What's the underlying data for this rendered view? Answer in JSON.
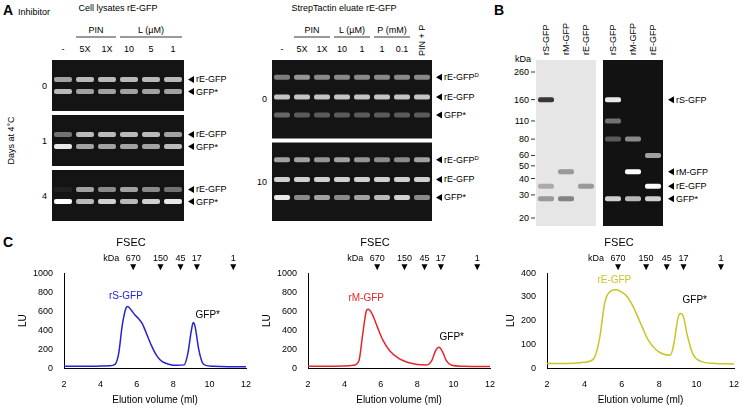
{
  "figure": {
    "panel_a": {
      "letter": "A",
      "inhibitor_label": "Inhibitor",
      "gels": [
        {
          "title": "Cell lysates rE-GFP",
          "row_axis_label": "Days at 4°C",
          "lanes": [
            {
              "label": "-"
            },
            {
              "label": "5X",
              "group": "PIN"
            },
            {
              "label": "1X",
              "group": "PIN"
            },
            {
              "label": "10",
              "group": "L (µM)"
            },
            {
              "label": "5",
              "group": "L (µM)"
            },
            {
              "label": "1",
              "group": "L (µM)"
            }
          ],
          "band_labels": [
            {
              "text": "rE-GFP"
            },
            {
              "text": "GFP*"
            }
          ],
          "rows": [
            {
              "label": "0",
              "bands": [
                [
                  0.6,
                  0.7
                ],
                [
                  0.7,
                  0.6
                ],
                [
                  0.7,
                  0.6
                ],
                [
                  0.7,
                  0.6
                ],
                [
                  0.7,
                  0.6
                ],
                [
                  0.7,
                  0.6
                ]
              ]
            },
            {
              "label": "1",
              "bands": [
                [
                  0.4,
                  0.9
                ],
                [
                  0.7,
                  0.6
                ],
                [
                  0.7,
                  0.6
                ],
                [
                  0.7,
                  0.6
                ],
                [
                  0.7,
                  0.6
                ],
                [
                  0.6,
                  0.7
                ]
              ]
            },
            {
              "label": "4",
              "bands": [
                [
                  0.05,
                  1.0
                ],
                [
                  0.6,
                  0.7
                ],
                [
                  0.5,
                  0.8
                ],
                [
                  0.6,
                  0.7
                ],
                [
                  0.5,
                  0.8
                ],
                [
                  0.4,
                  0.9
                ]
              ]
            }
          ]
        },
        {
          "title": "StrepTactin eluate rE-GFP",
          "lanes": [
            {
              "label": "-"
            },
            {
              "label": "5X",
              "group": "PIN"
            },
            {
              "label": "1X",
              "group": "PIN"
            },
            {
              "label": "10",
              "group": "L (µM)"
            },
            {
              "label": "1",
              "group": "L (µM)"
            },
            {
              "label": "1",
              "group": "P (mM)"
            },
            {
              "label": "0.1",
              "group": "P (mM)"
            },
            {
              "label": "PIN + P"
            }
          ],
          "band_labels": [
            {
              "text": "rE-GFP",
              "sup": "D"
            },
            {
              "text": "rE-GFP"
            },
            {
              "text": "GFP*"
            }
          ],
          "rows": [
            {
              "label": "0",
              "bands": [
                [
                  0.45,
                  0.75,
                  0.35
                ],
                [
                  0.55,
                  0.75,
                  0.3
                ],
                [
                  0.5,
                  0.75,
                  0.3
                ],
                [
                  0.5,
                  0.75,
                  0.3
                ],
                [
                  0.5,
                  0.75,
                  0.3
                ],
                [
                  0.5,
                  0.75,
                  0.3
                ],
                [
                  0.5,
                  0.75,
                  0.3
                ],
                [
                  0.5,
                  0.75,
                  0.3
                ]
              ]
            },
            {
              "label": "10",
              "bands": [
                [
                  0.6,
                  0.8,
                  0.9
                ],
                [
                  0.6,
                  0.8,
                  0.5
                ],
                [
                  0.55,
                  0.8,
                  0.6
                ],
                [
                  0.6,
                  0.8,
                  0.5
                ],
                [
                  0.55,
                  0.8,
                  0.6
                ],
                [
                  0.5,
                  0.8,
                  0.7
                ],
                [
                  0.5,
                  0.8,
                  0.8
                ],
                [
                  0.6,
                  0.8,
                  0.5
                ]
              ]
            }
          ]
        }
      ]
    },
    "panel_b": {
      "letter": "B",
      "unit": "kDa",
      "ladder": [
        260,
        160,
        110,
        80,
        60,
        50,
        40,
        30,
        20
      ],
      "gels": [
        {
          "style": "stain",
          "lanes": [
            {
              "label": "rS-GFP",
              "bands": [
                {
                  "kDa": 160,
                  "intensity": 0.9
                },
                {
                  "kDa": 35,
                  "intensity": 0.3
                },
                {
                  "kDa": 28,
                  "intensity": 0.4
                }
              ]
            },
            {
              "label": "rM-GFP",
              "bands": [
                {
                  "kDa": 45,
                  "intensity": 0.4
                },
                {
                  "kDa": 28,
                  "intensity": 0.5
                }
              ]
            },
            {
              "label": "rE-GFP",
              "bands": [
                {
                  "kDa": 35,
                  "intensity": 0.4
                }
              ]
            }
          ]
        },
        {
          "style": "fluorescence",
          "lanes": [
            {
              "label": "rS-GFP",
              "bands": [
                {
                  "kDa": 160,
                  "intensity": 0.9
                },
                {
                  "kDa": 110,
                  "intensity": 0.4
                },
                {
                  "kDa": 80,
                  "intensity": 0.3
                },
                {
                  "kDa": 28,
                  "intensity": 0.8
                }
              ]
            },
            {
              "label": "rM-GFP",
              "bands": [
                {
                  "kDa": 80,
                  "intensity": 0.5
                },
                {
                  "kDa": 45,
                  "intensity": 1.0
                },
                {
                  "kDa": 28,
                  "intensity": 0.7
                }
              ]
            },
            {
              "label": "rE-GFP",
              "bands": [
                {
                  "kDa": 60,
                  "intensity": 0.6
                },
                {
                  "kDa": 35,
                  "intensity": 1.0
                },
                {
                  "kDa": 28,
                  "intensity": 0.8
                }
              ]
            }
          ]
        }
      ],
      "band_labels": [
        {
          "text": "rS-GFP",
          "kDa": 160
        },
        {
          "text": "rM-GFP",
          "kDa": 45
        },
        {
          "text": "rE-GFP",
          "kDa": 35
        },
        {
          "text": "GFP*",
          "kDa": 28
        }
      ]
    },
    "panel_c": {
      "letter": "C"
    }
  },
  "chart_data": [
    {
      "type": "line",
      "title": "FSEC",
      "x_label": "Elution volume (ml)",
      "y_label": "LU",
      "xlim": [
        2,
        12
      ],
      "xticks": [
        2,
        4,
        6,
        8,
        10,
        12
      ],
      "ylim": [
        0,
        1000
      ],
      "yticks": [
        0,
        200,
        400,
        600,
        800,
        1000
      ],
      "grid": false,
      "x": [
        2,
        3,
        4,
        4.5,
        4.8,
        5,
        5.2,
        5.4,
        5.5,
        5.7,
        5.9,
        6.1,
        6.3,
        6.5,
        6.8,
        7.1,
        7.4,
        7.8,
        8.2,
        8.6,
        8.8,
        9,
        9.1,
        9.2,
        9.4,
        9.6,
        9.8,
        10.2,
        11,
        12
      ],
      "series": [
        {
          "name": "rS-GFP",
          "color": "#2323d3",
          "values": [
            20,
            20,
            22,
            25,
            40,
            150,
            450,
            630,
            650,
            610,
            560,
            520,
            470,
            380,
            240,
            130,
            70,
            40,
            30,
            35,
            150,
            400,
            480,
            440,
            200,
            60,
            30,
            20,
            15,
            15
          ]
        }
      ],
      "size_standards": {
        "unit": "kDa",
        "labels": [
          670,
          150,
          45,
          17,
          1
        ],
        "x": [
          5.8,
          7.3,
          8.4,
          9.3,
          11.3
        ]
      },
      "annotations": [
        {
          "text": "rS-GFP",
          "x": 5.4,
          "y": 710,
          "color": "#2323d3"
        },
        {
          "text": "GFP*",
          "x": 9.9,
          "y": 510,
          "color": "#000000"
        }
      ]
    },
    {
      "type": "line",
      "title": "FSEC",
      "x_label": "Elution volume (ml)",
      "y_label": "LU",
      "xlim": [
        2,
        12
      ],
      "xticks": [
        2,
        4,
        6,
        8,
        10,
        12
      ],
      "ylim": [
        0,
        1000
      ],
      "yticks": [
        0,
        200,
        400,
        600,
        800,
        1000
      ],
      "grid": false,
      "x": [
        2,
        3,
        4,
        4.5,
        4.8,
        5,
        5.2,
        5.3,
        5.5,
        5.8,
        6.1,
        6.5,
        7,
        7.5,
        8,
        8.5,
        8.8,
        9,
        9.2,
        9.4,
        9.6,
        9.9,
        10.5,
        11,
        12
      ],
      "series": [
        {
          "name": "rM-GFP",
          "color": "#e8262a",
          "values": [
            20,
            20,
            22,
            30,
            80,
            350,
            600,
            620,
            580,
            440,
            300,
            180,
            100,
            60,
            40,
            35,
            80,
            180,
            220,
            170,
            80,
            30,
            20,
            18,
            18
          ]
        }
      ],
      "size_standards": {
        "unit": "kDa",
        "labels": [
          670,
          150,
          45,
          17,
          1
        ],
        "x": [
          5.8,
          7.3,
          8.4,
          9.3,
          11.3
        ]
      },
      "annotations": [
        {
          "text": "rM-GFP",
          "x": 5.2,
          "y": 680,
          "color": "#e8262a"
        },
        {
          "text": "GFP*",
          "x": 9.9,
          "y": 270,
          "color": "#000000"
        }
      ]
    },
    {
      "type": "line",
      "title": "FSEC",
      "x_label": "Elution volume (ml)",
      "y_label": "LU",
      "xlim": [
        2,
        12
      ],
      "xticks": [
        2,
        4,
        6,
        8,
        10,
        12
      ],
      "ylim": [
        0,
        400
      ],
      "yticks": [
        0,
        100,
        200,
        300,
        400
      ],
      "grid": false,
      "x": [
        2,
        3,
        4,
        4.5,
        4.8,
        5.1,
        5.4,
        5.7,
        6,
        6.3,
        6.6,
        7,
        7.4,
        7.8,
        8.2,
        8.6,
        8.8,
        9,
        9.15,
        9.3,
        9.5,
        9.8,
        10.2,
        11,
        12
      ],
      "series": [
        {
          "name": "rE-GFP",
          "color": "#c9c427",
          "values": [
            20,
            20,
            25,
            40,
            120,
            280,
            325,
            330,
            320,
            300,
            260,
            190,
            120,
            80,
            60,
            55,
            110,
            210,
            230,
            215,
            140,
            60,
            30,
            20,
            18
          ]
        }
      ],
      "size_standards": {
        "unit": "kDa",
        "labels": [
          670,
          150,
          45,
          17,
          1
        ],
        "x": [
          5.8,
          7.3,
          8.4,
          9.3,
          11.3
        ]
      },
      "annotations": [
        {
          "text": "rE-GFP",
          "x": 5.6,
          "y": 350,
          "color": "#c9c427"
        },
        {
          "text": "GFP*",
          "x": 9.9,
          "y": 265,
          "color": "#000000"
        }
      ]
    }
  ]
}
